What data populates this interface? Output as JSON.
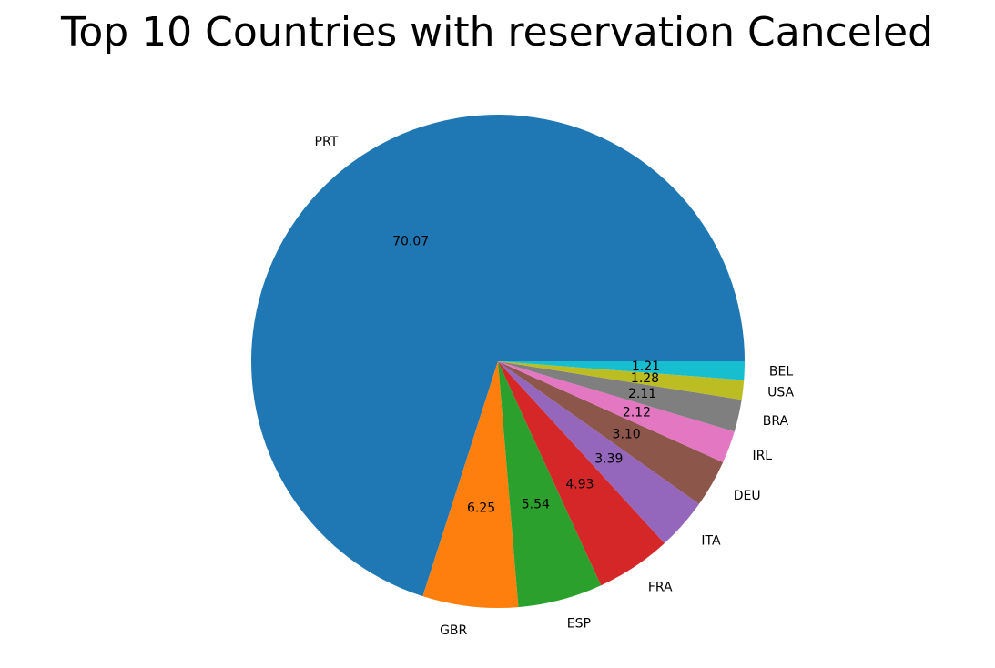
{
  "chart_data": {
    "type": "pie",
    "title": "Top 10 Countries with reservation Canceled",
    "categories": [
      "PRT",
      "GBR",
      "ESP",
      "FRA",
      "ITA",
      "DEU",
      "IRL",
      "BRA",
      "USA",
      "BEL"
    ],
    "values": [
      70.07,
      6.25,
      5.54,
      4.93,
      3.39,
      3.1,
      2.12,
      2.11,
      1.28,
      1.21
    ],
    "value_labels": [
      "70.07",
      "6.25",
      "5.54",
      "4.93",
      "3.39",
      "3.10",
      "2.12",
      "2.11",
      "1.28",
      "1.21"
    ],
    "colors": [
      "#1f77b4",
      "#ff7f0e",
      "#2ca02c",
      "#d62728",
      "#9467bd",
      "#8c564b",
      "#e377c2",
      "#7f7f7f",
      "#bcbd22",
      "#17becf"
    ],
    "start_angle_deg": 0,
    "direction": "counterclockwise",
    "legend": "none"
  }
}
